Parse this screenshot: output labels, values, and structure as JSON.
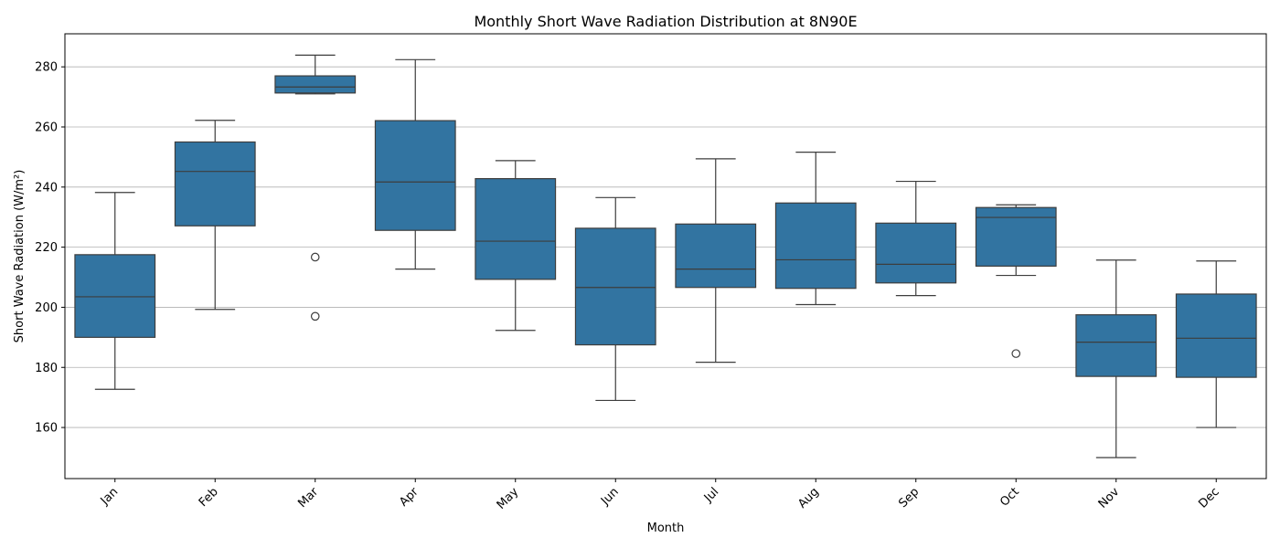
{
  "chart_data": {
    "type": "box",
    "title": "Monthly Short Wave Radiation Distribution at 8N90E",
    "xlabel": "Month",
    "ylabel": "Short Wave Radiation (W/m²)",
    "ylim": [
      143,
      291
    ],
    "yticks": [
      160,
      180,
      200,
      220,
      240,
      260,
      280
    ],
    "grid": "y-major",
    "box_color": "#3274a1",
    "edge_color": "#3d3d3d",
    "categories": [
      "Jan",
      "Feb",
      "Mar",
      "Apr",
      "May",
      "Jun",
      "Jul",
      "Aug",
      "Sep",
      "Oct",
      "Nov",
      "Dec"
    ],
    "boxes": [
      {
        "whislo": 172.7,
        "q1": 190.0,
        "med": 203.5,
        "q3": 217.5,
        "whishi": 238.2,
        "fliers": []
      },
      {
        "whislo": 199.3,
        "q1": 227.1,
        "med": 245.2,
        "q3": 255.0,
        "whishi": 262.2,
        "fliers": []
      },
      {
        "whislo": 271.0,
        "q1": 271.3,
        "med": 273.3,
        "q3": 277.0,
        "whishi": 283.9,
        "fliers": [
          216.7,
          197.0
        ]
      },
      {
        "whislo": 212.7,
        "q1": 225.6,
        "med": 241.7,
        "q3": 262.1,
        "whishi": 282.4,
        "fliers": []
      },
      {
        "whislo": 192.3,
        "q1": 209.3,
        "med": 222.0,
        "q3": 242.8,
        "whishi": 248.8,
        "fliers": []
      },
      {
        "whislo": 169.0,
        "q1": 187.5,
        "med": 206.6,
        "q3": 226.3,
        "whishi": 236.5,
        "fliers": []
      },
      {
        "whislo": 181.7,
        "q1": 206.6,
        "med": 212.7,
        "q3": 227.7,
        "whishi": 249.4,
        "fliers": []
      },
      {
        "whislo": 200.9,
        "q1": 206.3,
        "med": 215.8,
        "q3": 234.7,
        "whishi": 251.6,
        "fliers": []
      },
      {
        "whislo": 203.9,
        "q1": 208.1,
        "med": 214.3,
        "q3": 228.0,
        "whishi": 241.9,
        "fliers": []
      },
      {
        "whislo": 210.6,
        "q1": 213.7,
        "med": 229.9,
        "q3": 233.2,
        "whishi": 234.1,
        "fliers": [
          184.6
        ]
      },
      {
        "whislo": 150.0,
        "q1": 177.0,
        "med": 188.4,
        "q3": 197.5,
        "whishi": 215.7,
        "fliers": []
      },
      {
        "whislo": 160.0,
        "q1": 176.7,
        "med": 189.7,
        "q3": 204.4,
        "whishi": 215.4,
        "fliers": []
      }
    ]
  }
}
